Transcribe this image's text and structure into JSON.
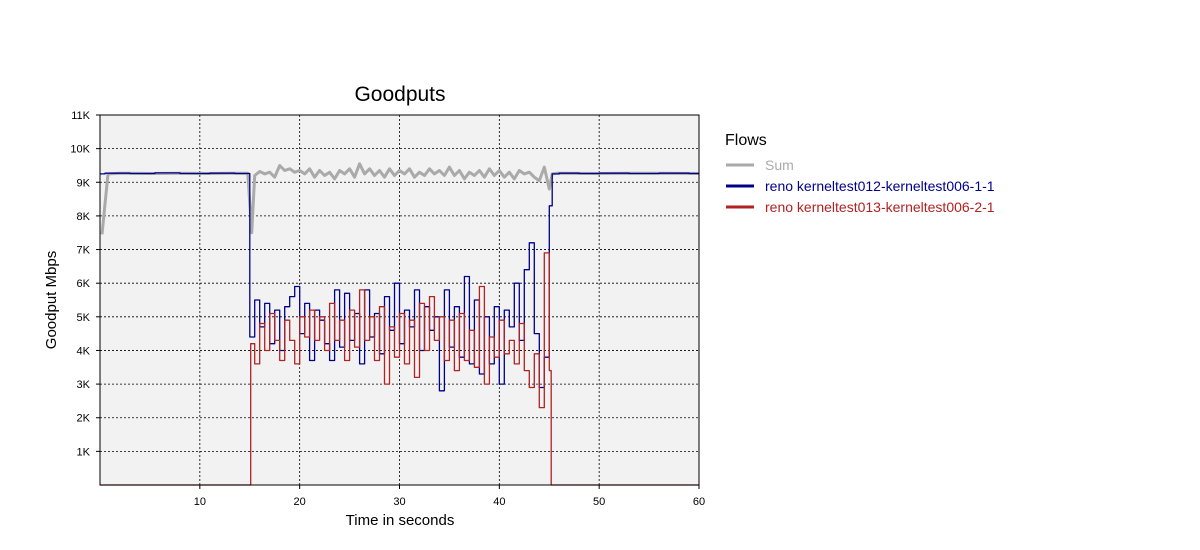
{
  "chart_data": {
    "type": "line",
    "title": "Goodputs",
    "xlabel": "Time in seconds",
    "ylabel": "Goodput Mbps",
    "xlim": [
      0,
      60
    ],
    "ylim": [
      0,
      11000
    ],
    "x_ticks": [
      10,
      20,
      30,
      40,
      50,
      60
    ],
    "x_tick_labels": [
      "10",
      "20",
      "30",
      "40",
      "50",
      "60"
    ],
    "y_ticks": [
      1000,
      2000,
      3000,
      4000,
      5000,
      6000,
      7000,
      8000,
      9000,
      10000,
      11000
    ],
    "y_tick_labels": [
      "1K",
      "2K",
      "3K",
      "4K",
      "5K",
      "6K",
      "7K",
      "8K",
      "9K",
      "10K",
      "11K"
    ],
    "grid": true,
    "legend_title": "Flows",
    "legend_position": "right",
    "series": [
      {
        "name": "Sum",
        "color": "#aaaaaa",
        "step": false,
        "points": [
          [
            0.2,
            7450
          ],
          [
            0.8,
            9250
          ],
          [
            2,
            9270
          ],
          [
            5,
            9260
          ],
          [
            8,
            9270
          ],
          [
            11,
            9260
          ],
          [
            13,
            9270
          ],
          [
            14.8,
            9270
          ],
          [
            15.2,
            7500
          ],
          [
            15.5,
            9200
          ],
          [
            16,
            9320
          ],
          [
            16.5,
            9250
          ],
          [
            17,
            9300
          ],
          [
            17.5,
            9150
          ],
          [
            18,
            9500
          ],
          [
            18.5,
            9350
          ],
          [
            19,
            9400
          ],
          [
            19.5,
            9300
          ],
          [
            20,
            9350
          ],
          [
            20.5,
            9250
          ],
          [
            21,
            9400
          ],
          [
            21.5,
            9150
          ],
          [
            22,
            9350
          ],
          [
            22.5,
            9200
          ],
          [
            23,
            9300
          ],
          [
            23.5,
            9100
          ],
          [
            24,
            9350
          ],
          [
            24.5,
            9250
          ],
          [
            25,
            9400
          ],
          [
            25.5,
            9150
          ],
          [
            26,
            9550
          ],
          [
            26.5,
            9250
          ],
          [
            27,
            9400
          ],
          [
            27.5,
            9200
          ],
          [
            28,
            9350
          ],
          [
            28.5,
            9150
          ],
          [
            29,
            9400
          ],
          [
            29.5,
            9200
          ],
          [
            30,
            9350
          ],
          [
            30.5,
            9250
          ],
          [
            31,
            9400
          ],
          [
            31.5,
            9150
          ],
          [
            32,
            9300
          ],
          [
            32.5,
            9200
          ],
          [
            33,
            9400
          ],
          [
            33.5,
            9250
          ],
          [
            34,
            9350
          ],
          [
            34.5,
            9200
          ],
          [
            35,
            9450
          ],
          [
            35.5,
            9200
          ],
          [
            36,
            9350
          ],
          [
            36.5,
            9100
          ],
          [
            37,
            9300
          ],
          [
            37.5,
            9200
          ],
          [
            38,
            9350
          ],
          [
            38.5,
            9150
          ],
          [
            39,
            9400
          ],
          [
            39.5,
            9200
          ],
          [
            40,
            9350
          ],
          [
            40.5,
            9150
          ],
          [
            41,
            9300
          ],
          [
            41.5,
            9100
          ],
          [
            42,
            9350
          ],
          [
            42.5,
            9250
          ],
          [
            43,
            9300
          ],
          [
            43.5,
            9150
          ],
          [
            44,
            9050
          ],
          [
            44.5,
            9450
          ],
          [
            45,
            8800
          ],
          [
            45.3,
            9250
          ],
          [
            45.8,
            9270
          ],
          [
            50,
            9260
          ],
          [
            55,
            9270
          ],
          [
            60,
            9260
          ]
        ]
      },
      {
        "name": "reno kerneltest012-kerneltest006-1-1",
        "color": "#00008b",
        "step": true,
        "points": [
          [
            0,
            9250
          ],
          [
            0.5,
            9270
          ],
          [
            3,
            9260
          ],
          [
            5.5,
            9280
          ],
          [
            8,
            9260
          ],
          [
            11,
            9270
          ],
          [
            13.5,
            9260
          ],
          [
            14.8,
            9260
          ],
          [
            15.0,
            4400
          ],
          [
            15.5,
            5500
          ],
          [
            16.0,
            4700
          ],
          [
            16.5,
            5400
          ],
          [
            17.0,
            4200
          ],
          [
            17.5,
            5200
          ],
          [
            18.0,
            4000
          ],
          [
            18.5,
            5300
          ],
          [
            19.0,
            5600
          ],
          [
            19.5,
            5900
          ],
          [
            20.0,
            4500
          ],
          [
            20.5,
            5400
          ],
          [
            21.0,
            3700
          ],
          [
            21.5,
            5200
          ],
          [
            22.0,
            4900
          ],
          [
            22.5,
            4200
          ],
          [
            23.0,
            3700
          ],
          [
            23.5,
            5800
          ],
          [
            24.0,
            4100
          ],
          [
            24.5,
            5700
          ],
          [
            25.0,
            4300
          ],
          [
            25.5,
            5100
          ],
          [
            26.0,
            3600
          ],
          [
            26.5,
            5800
          ],
          [
            27.0,
            4400
          ],
          [
            27.5,
            5100
          ],
          [
            28.0,
            3900
          ],
          [
            28.5,
            5600
          ],
          [
            29.0,
            4600
          ],
          [
            29.5,
            6000
          ],
          [
            30.0,
            4200
          ],
          [
            30.5,
            5200
          ],
          [
            31.0,
            4700
          ],
          [
            31.5,
            5800
          ],
          [
            32.0,
            4000
          ],
          [
            32.5,
            5300
          ],
          [
            33.0,
            4600
          ],
          [
            33.5,
            5000
          ],
          [
            34.0,
            2800
          ],
          [
            34.5,
            5800
          ],
          [
            35.0,
            4100
          ],
          [
            35.5,
            5300
          ],
          [
            36.0,
            3800
          ],
          [
            36.5,
            6200
          ],
          [
            37.0,
            3600
          ],
          [
            37.5,
            5500
          ],
          [
            38.0,
            3300
          ],
          [
            38.5,
            5000
          ],
          [
            39.0,
            3600
          ],
          [
            39.5,
            5300
          ],
          [
            40.0,
            3000
          ],
          [
            40.5,
            5200
          ],
          [
            41.0,
            4700
          ],
          [
            41.5,
            6000
          ],
          [
            42.0,
            4300
          ],
          [
            42.5,
            6400
          ],
          [
            43.0,
            7200
          ],
          [
            43.5,
            4500
          ],
          [
            44.0,
            2900
          ],
          [
            44.5,
            3800
          ],
          [
            45.0,
            8300
          ],
          [
            45.3,
            9250
          ],
          [
            46,
            9270
          ],
          [
            48,
            9260
          ],
          [
            50,
            9270
          ],
          [
            53,
            9260
          ],
          [
            56,
            9270
          ],
          [
            59,
            9260
          ],
          [
            60,
            9260
          ]
        ]
      },
      {
        "name": "reno kerneltest013-kerneltest006-2-1",
        "color": "#b22222",
        "step": true,
        "points": [
          [
            0,
            0
          ],
          [
            15.0,
            0
          ],
          [
            15.1,
            4200
          ],
          [
            15.5,
            3600
          ],
          [
            16.0,
            4800
          ],
          [
            16.5,
            4000
          ],
          [
            17.0,
            5100
          ],
          [
            17.5,
            4300
          ],
          [
            18.0,
            3700
          ],
          [
            18.5,
            4900
          ],
          [
            19.0,
            4300
          ],
          [
            19.5,
            3600
          ],
          [
            20.0,
            5000
          ],
          [
            20.5,
            4400
          ],
          [
            21.0,
            5200
          ],
          [
            21.5,
            4300
          ],
          [
            22.0,
            5000
          ],
          [
            22.5,
            4000
          ],
          [
            23.0,
            5400
          ],
          [
            23.5,
            4300
          ],
          [
            24.0,
            4900
          ],
          [
            24.5,
            3700
          ],
          [
            25.0,
            5200
          ],
          [
            25.5,
            4100
          ],
          [
            26.0,
            5800
          ],
          [
            26.5,
            4300
          ],
          [
            27.0,
            5000
          ],
          [
            27.5,
            3700
          ],
          [
            28.0,
            5300
          ],
          [
            28.5,
            3000
          ],
          [
            29.0,
            4700
          ],
          [
            29.5,
            3800
          ],
          [
            30.0,
            5100
          ],
          [
            30.5,
            3600
          ],
          [
            31.0,
            4900
          ],
          [
            31.5,
            3200
          ],
          [
            32.0,
            5400
          ],
          [
            32.5,
            4000
          ],
          [
            33.0,
            5600
          ],
          [
            33.5,
            4300
          ],
          [
            34.0,
            5000
          ],
          [
            34.5,
            3700
          ],
          [
            35.0,
            4900
          ],
          [
            35.5,
            3400
          ],
          [
            36.0,
            5100
          ],
          [
            36.5,
            3700
          ],
          [
            37.0,
            4600
          ],
          [
            37.5,
            3500
          ],
          [
            38.0,
            5900
          ],
          [
            38.5,
            3000
          ],
          [
            39.0,
            4400
          ],
          [
            39.5,
            3800
          ],
          [
            40.0,
            4900
          ],
          [
            40.5,
            3900
          ],
          [
            41.0,
            4300
          ],
          [
            41.5,
            3600
          ],
          [
            42.0,
            4800
          ],
          [
            42.5,
            3400
          ],
          [
            43.0,
            2900
          ],
          [
            43.5,
            3900
          ],
          [
            44.0,
            2300
          ],
          [
            44.5,
            6900
          ],
          [
            45.0,
            3400
          ],
          [
            45.2,
            0
          ],
          [
            60,
            0
          ]
        ]
      }
    ]
  }
}
